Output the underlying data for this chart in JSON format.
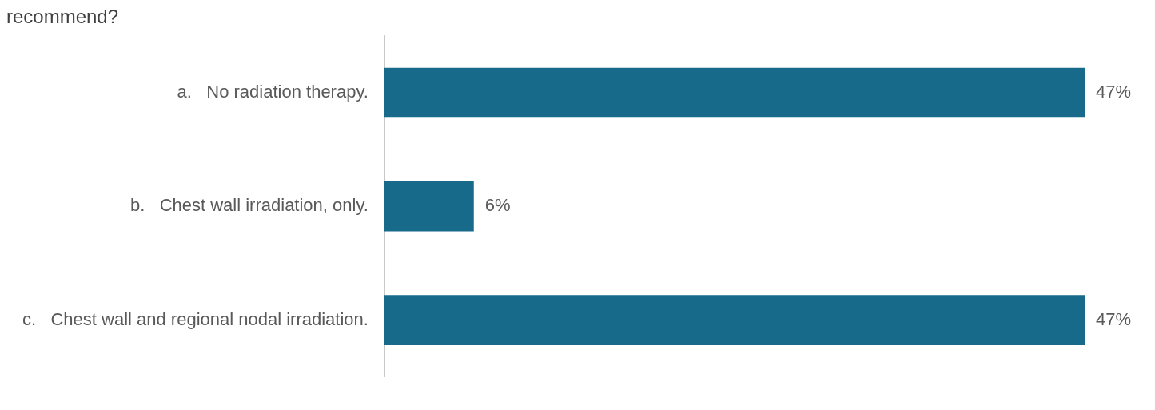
{
  "chart_data": {
    "type": "bar",
    "orientation": "horizontal",
    "title": "recommend?",
    "categories": [
      "a.   No radiation therapy.",
      "b.   Chest wall irradiation, only.",
      "c.   Chest wall and regional nodal irradiation."
    ],
    "values": [
      47,
      6,
      47
    ],
    "color": "#176a8a",
    "value_labels": [
      "47%",
      "6%",
      "47%"
    ],
    "legend": false
  }
}
